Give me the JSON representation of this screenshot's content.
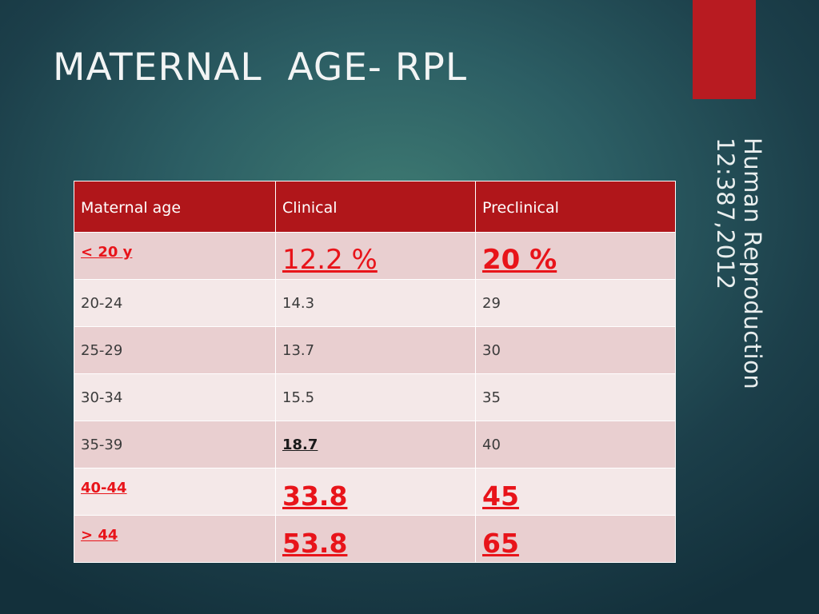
{
  "slide": {
    "title": "MATERNAL  AGE- RPL",
    "citation_line1": "Human Reproduction",
    "citation_line2": "12:387,2012",
    "accent_color": "#b81b21"
  },
  "table": {
    "headers": [
      "Maternal age",
      "Clinical",
      "Preclinical"
    ],
    "rows": [
      {
        "age": "< 20 y",
        "clinical": "12.2 %",
        "preclinical": "20 %"
      },
      {
        "age": "20-24",
        "clinical": "14.3",
        "preclinical": "29"
      },
      {
        "age": "25-29",
        "clinical": "13.7",
        "preclinical": "30"
      },
      {
        "age": "30-34",
        "clinical": "15.5",
        "preclinical": "35"
      },
      {
        "age": "35-39",
        "clinical": "18.7",
        "preclinical": "40"
      },
      {
        "age": "40-44",
        "clinical": "33.8",
        "preclinical": "45"
      },
      {
        "age": "> 44",
        "clinical": "53.8",
        "preclinical": "65"
      }
    ],
    "header_color": "#b0161a",
    "highlight_color": "#e8141a"
  }
}
